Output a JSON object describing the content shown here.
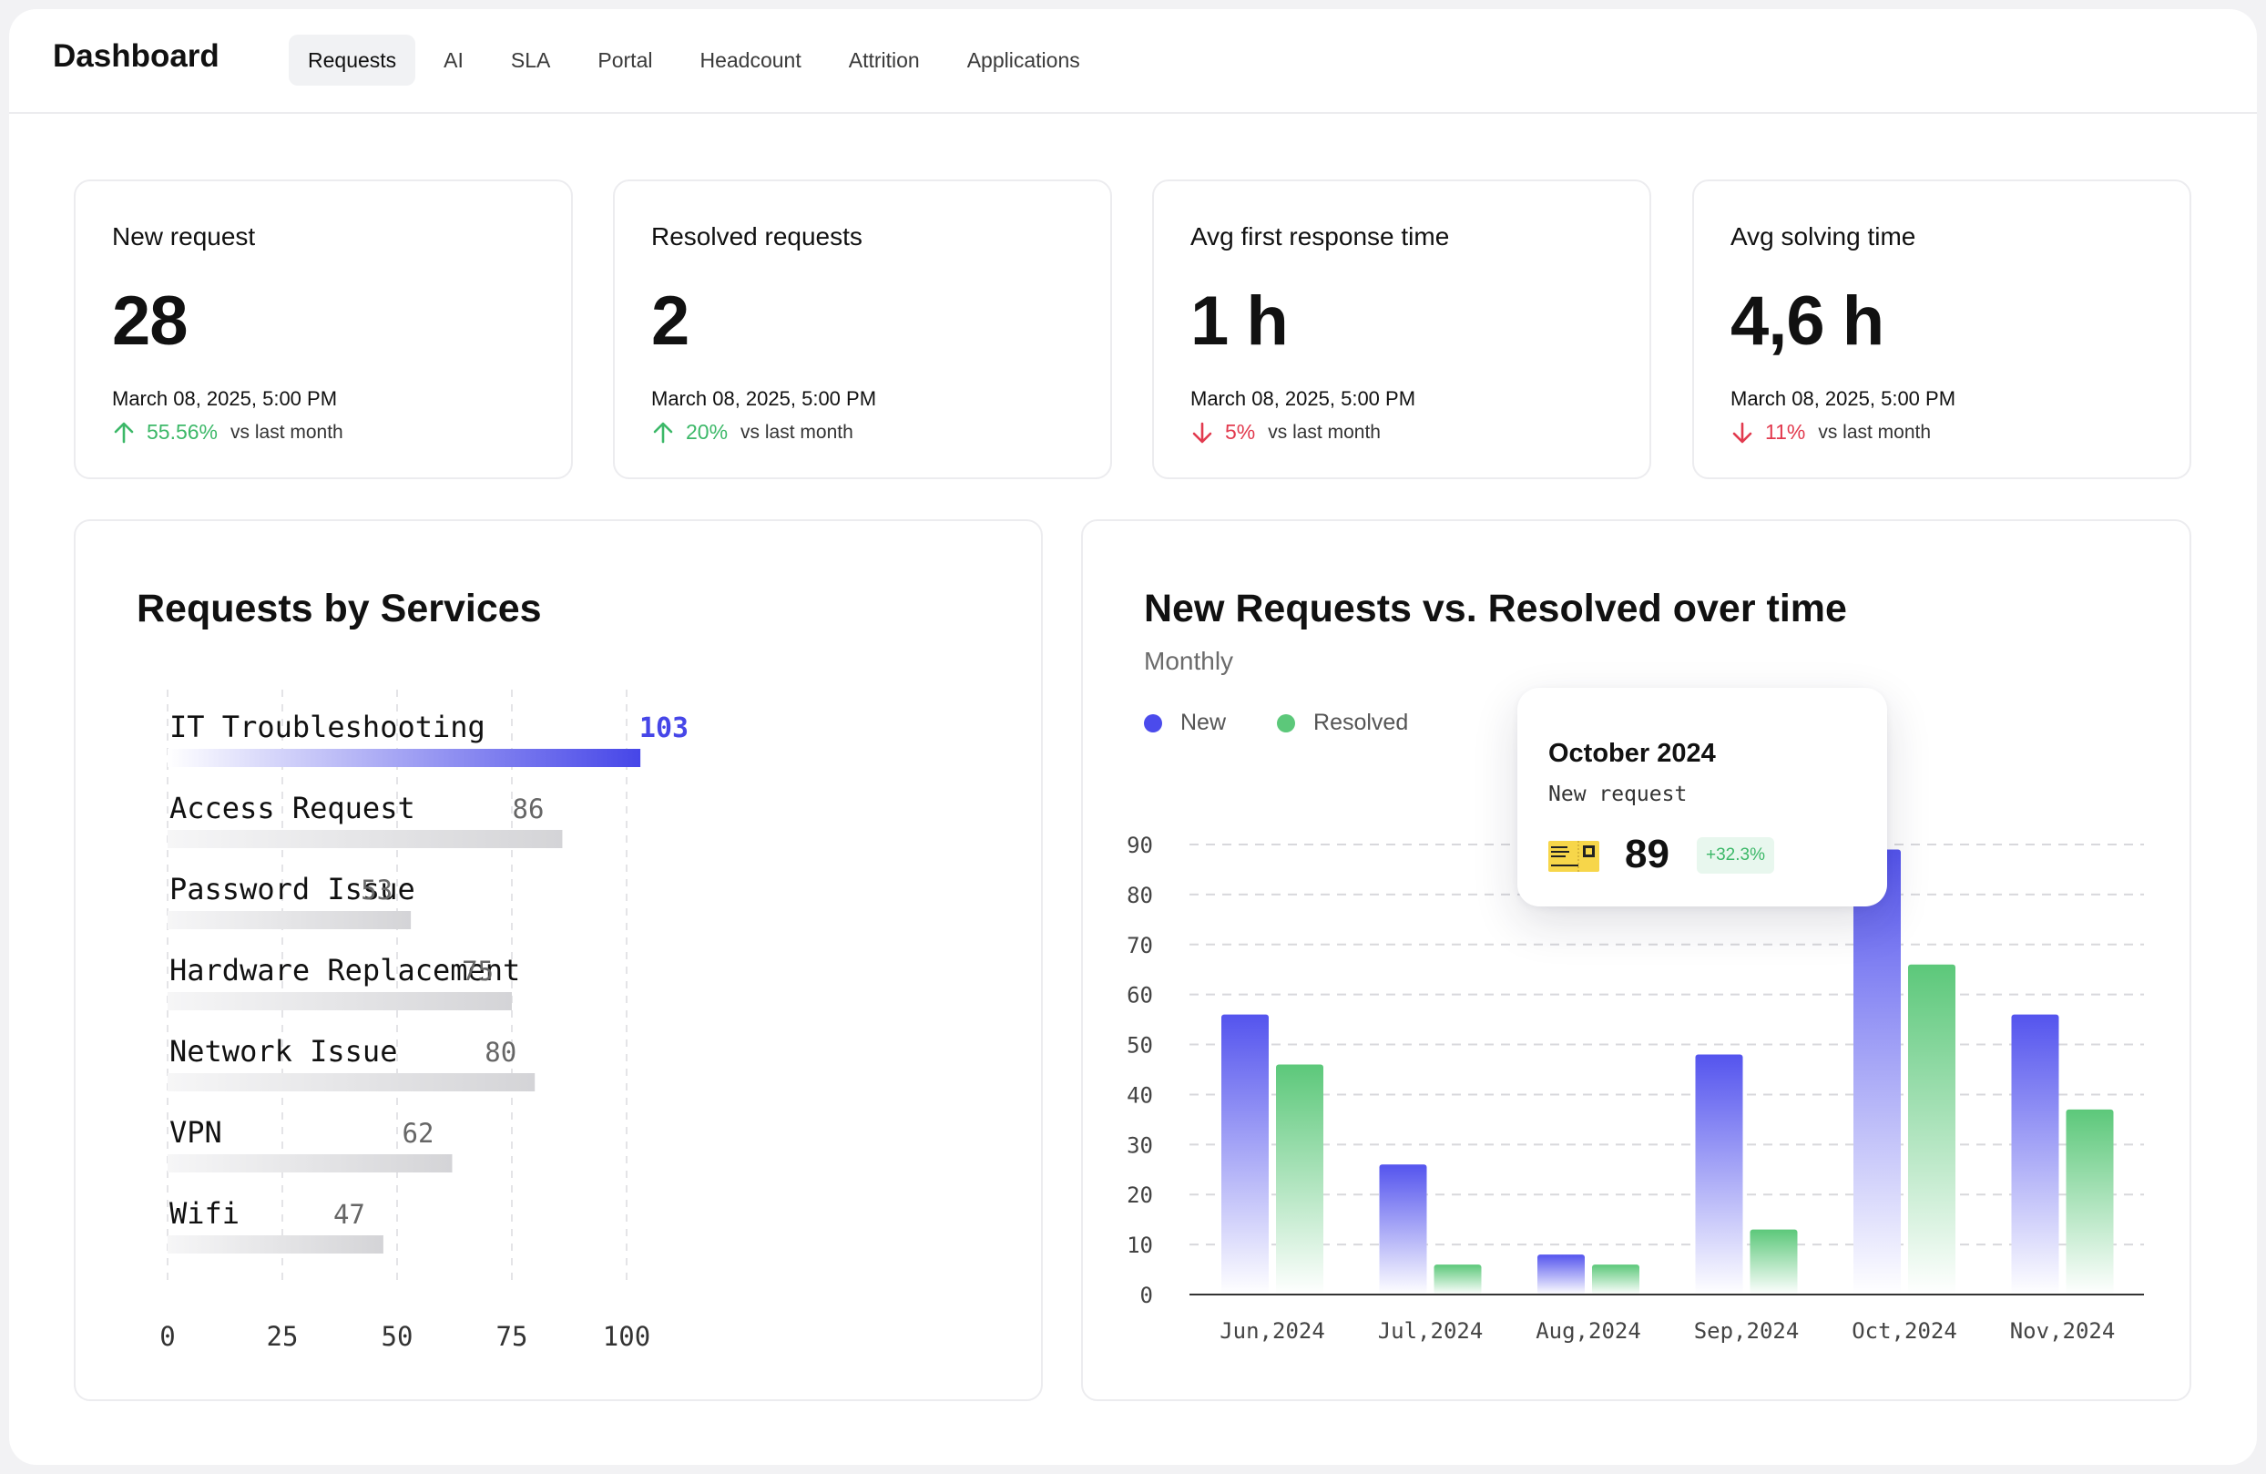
{
  "app": {
    "title": "Dashboard",
    "tabs": [
      "Requests",
      "AI",
      "SLA",
      "Portal",
      "Headcount",
      "Attrition",
      "Applications"
    ],
    "active_tab": "Requests"
  },
  "kpis": [
    {
      "title": "New request",
      "value": "28",
      "date": "March 08, 2025, 5:00 PM",
      "change": "55.56%",
      "direction": "up",
      "compare": "vs last month"
    },
    {
      "title": "Resolved requests",
      "value": "2",
      "date": "March 08, 2025, 5:00 PM",
      "change": "20%",
      "direction": "up",
      "compare": "vs last month"
    },
    {
      "title": "Avg first response time",
      "value": "1 h",
      "date": "March 08, 2025, 5:00 PM",
      "change": "5%",
      "direction": "down",
      "compare": "vs last month"
    },
    {
      "title": "Avg solving time",
      "value": "4,6 h",
      "date": "March 08, 2025, 5:00 PM",
      "change": "11%",
      "direction": "down",
      "compare": "vs last month"
    }
  ],
  "colors": {
    "up": "#3cb868",
    "down": "#e23a4e",
    "new": "#5454ee",
    "resolved": "#5cc87a",
    "highlight": "#4646e8"
  },
  "services_chart": {
    "title": "Requests by Services"
  },
  "timeline_chart": {
    "title": "New Requests vs. Resolved over time",
    "subtitle": "Monthly",
    "legend": [
      "New",
      "Resolved"
    ]
  },
  "tooltip": {
    "title": "October 2024",
    "label": "New request",
    "value": "89",
    "badge": "+32.3%"
  },
  "chart_data": [
    {
      "type": "bar",
      "orientation": "horizontal",
      "title": "Requests by Services",
      "categories": [
        "IT Troubleshooting",
        "Access Request",
        "Password Issue",
        "Hardware Replacement",
        "Network Issue",
        "VPN",
        "Wifi"
      ],
      "values": [
        103,
        86,
        53,
        75,
        80,
        62,
        47
      ],
      "highlighted": "IT Troubleshooting",
      "xlim": [
        0,
        100
      ],
      "xticks": [
        0,
        25,
        50,
        75,
        100
      ],
      "grid": true
    },
    {
      "type": "bar",
      "title": "New Requests vs. Resolved over time",
      "subtitle": "Monthly",
      "categories": [
        "Jun,2024",
        "Jul,2024",
        "Aug,2024",
        "Sep,2024",
        "Oct,2024",
        "Nov,2024"
      ],
      "series": [
        {
          "name": "New",
          "values": [
            56,
            26,
            8,
            48,
            89,
            56
          ]
        },
        {
          "name": "Resolved",
          "values": [
            46,
            6,
            6,
            13,
            66,
            37
          ]
        }
      ],
      "ylim": [
        0,
        90
      ],
      "yticks": [
        0,
        10,
        20,
        30,
        40,
        50,
        60,
        70,
        80,
        90
      ],
      "grid": true,
      "legend": "top-left"
    }
  ]
}
